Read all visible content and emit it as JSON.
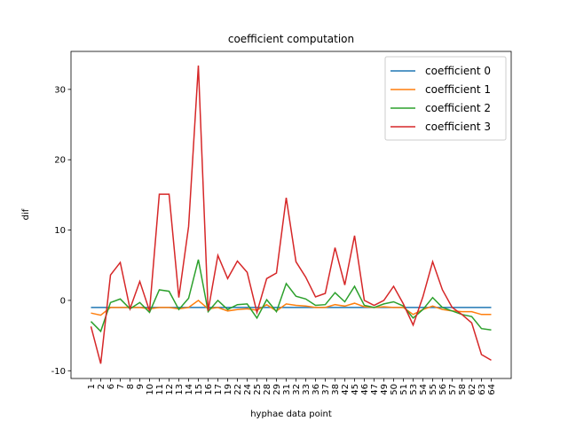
{
  "chart_data": {
    "type": "line",
    "title": "coefficient computation",
    "x_label": "hyphae data point",
    "y_label": "dif",
    "categories": [
      "1",
      "2",
      "6",
      "7",
      "8",
      "9",
      "10",
      "11",
      "12",
      "13",
      "14",
      "15",
      "16",
      "17",
      "19",
      "22",
      "24",
      "25",
      "28",
      "29",
      "31",
      "32",
      "33",
      "36",
      "37",
      "38",
      "42",
      "45",
      "46",
      "47",
      "49",
      "50",
      "51",
      "53",
      "54",
      "55",
      "56",
      "57",
      "58",
      "62",
      "63",
      "64"
    ],
    "series": [
      {
        "name": "coefficient 0",
        "color": "#1f77b4",
        "values": [
          -1,
          -1,
          -1,
          -1,
          -1,
          -1,
          -1,
          -1,
          -1,
          -1,
          -1,
          -1,
          -1,
          -1,
          -1,
          -1,
          -1,
          -1,
          -1,
          -1,
          -1,
          -1,
          -1,
          -1,
          -1,
          -1,
          -1,
          -1,
          -1,
          -1,
          -1,
          -1,
          -1,
          -1,
          -1,
          -1,
          -1,
          -1,
          -1,
          -1,
          -1,
          -1
        ]
      },
      {
        "name": "coefficient 1",
        "color": "#ff7f0e",
        "values": [
          -1.8,
          -2.1,
          -1.0,
          -1.0,
          -1.0,
          -1.0,
          -1.2,
          -1.0,
          -1.0,
          -1.2,
          -1.0,
          0.0,
          -1.2,
          -1.0,
          -1.5,
          -1.3,
          -1.2,
          -1.4,
          -0.6,
          -1.5,
          -0.5,
          -0.7,
          -0.8,
          -1.0,
          -1.0,
          -0.6,
          -0.8,
          -0.4,
          -0.9,
          -1.0,
          -0.9,
          -1.0,
          -1.0,
          -2.0,
          -1.3,
          -0.8,
          -1.3,
          -1.5,
          -1.6,
          -1.6,
          -2.0,
          -2.0
        ]
      },
      {
        "name": "coefficient 2",
        "color": "#2ca02c",
        "values": [
          -3.0,
          -4.4,
          -0.3,
          0.2,
          -1.2,
          -0.3,
          -1.7,
          1.5,
          1.3,
          -1.3,
          0.3,
          5.8,
          -1.6,
          0.0,
          -1.3,
          -0.6,
          -0.5,
          -2.5,
          0.1,
          -1.6,
          2.4,
          0.6,
          0.2,
          -0.7,
          -0.6,
          1.1,
          -0.2,
          2.0,
          -0.7,
          -1.0,
          -0.5,
          -0.2,
          -0.8,
          -2.5,
          -1.3,
          0.4,
          -1.0,
          -1.5,
          -2.0,
          -2.3,
          -4.0,
          -4.2
        ]
      },
      {
        "name": "coefficient 3",
        "color": "#d62728",
        "values": [
          -3.7,
          -9.0,
          3.6,
          5.4,
          -1.2,
          2.7,
          -1.5,
          15.1,
          15.1,
          0.4,
          10.5,
          33.4,
          -1.5,
          6.4,
          3.1,
          5.6,
          4.0,
          -1.7,
          3.1,
          3.9,
          14.6,
          5.5,
          3.3,
          0.5,
          1.0,
          7.5,
          2.2,
          9.2,
          0.0,
          -0.7,
          0.0,
          2.0,
          -0.5,
          -3.5,
          0.5,
          5.5,
          1.5,
          -1.0,
          -2.0,
          -3.2,
          -7.7,
          -8.5
        ]
      }
    ],
    "ylim": [
      -11.1,
      35.4
    ],
    "yticks": [
      -10,
      0,
      10,
      20,
      30
    ],
    "legend": "upper right"
  }
}
